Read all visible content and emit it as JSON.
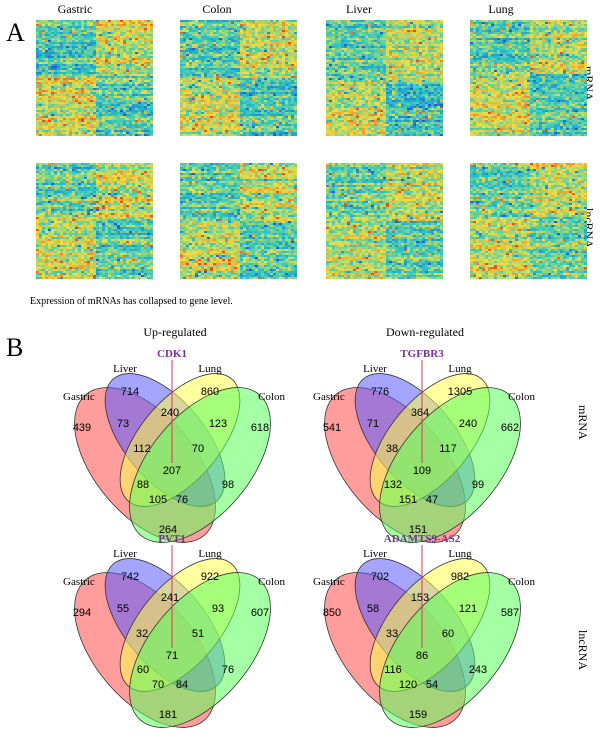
{
  "panel_a": {
    "letter": "A",
    "columns": [
      "Gastric",
      "Colon",
      "Liver",
      "Lung"
    ],
    "rows": [
      "mRNA",
      "lncRNA"
    ],
    "caption": "Expression of mRNAs has collapsed to gene level.",
    "colors": {
      "low": "#1f5fd6",
      "mid": "#29c7c8",
      "high": "#f0e040",
      "hot": "#e8501a"
    }
  },
  "panel_b": {
    "letter": "B",
    "columns": [
      "Up-regulated",
      "Down-regulated"
    ],
    "rows": [
      "mRNA",
      "lncRNA"
    ],
    "set_labels": {
      "gastric": "Gastric",
      "liver": "Liver",
      "lung": "Lung",
      "colon": "Colon"
    },
    "colors": {
      "gastric": "#ff4d4d",
      "liver": "#5b5bff",
      "lung": "#ffff4d",
      "colon": "#5bff5b"
    },
    "venns": [
      {
        "gene": "CDK1",
        "n": {
          "g": "439",
          "l": "714",
          "u": "860",
          "c": "618",
          "gl": "73",
          "lu": "240",
          "uc": "123",
          "gu": "112",
          "lc": "70",
          "glu": "88",
          "guc": "105",
          "luc": "98",
          "glc": "76",
          "gc": "264",
          "all": "207"
        }
      },
      {
        "gene": "TGFBR3",
        "n": {
          "g": "541",
          "l": "776",
          "u": "1305",
          "c": "662",
          "gl": "71",
          "lu": "364",
          "uc": "240",
          "gu": "38",
          "lc": "117",
          "glu": "132",
          "guc": "151",
          "luc": "99",
          "glc": "47",
          "gc": "151",
          "all": "109"
        }
      },
      {
        "gene": "PVT1",
        "n": {
          "g": "294",
          "l": "742",
          "u": "922",
          "c": "607",
          "gl": "55",
          "lu": "241",
          "uc": "93",
          "gu": "32",
          "lc": "51",
          "glu": "60",
          "guc": "70",
          "luc": "76",
          "glc": "84",
          "gc": "181",
          "all": "71"
        }
      },
      {
        "gene": "ADAMTS9-AS2",
        "n": {
          "g": "850",
          "l": "702",
          "u": "982",
          "c": "587",
          "gl": "58",
          "lu": "153",
          "uc": "121",
          "gu": "33",
          "lc": "60",
          "glu": "116",
          "guc": "120",
          "luc": "243",
          "glc": "54",
          "gc": "159",
          "all": "86"
        }
      }
    ]
  }
}
